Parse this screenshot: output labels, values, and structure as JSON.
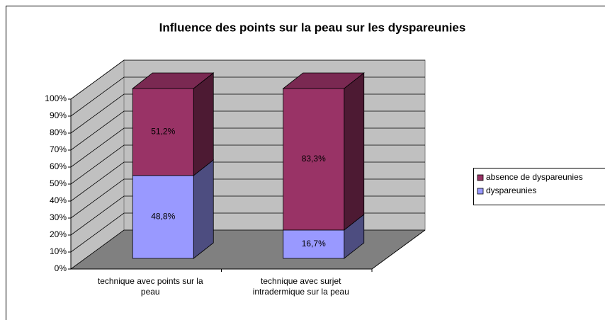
{
  "chart_data": {
    "type": "bar3d_stacked",
    "title": "Influence des points sur la peau sur les dyspareunies",
    "categories": [
      "technique avec points sur la peau",
      "technique avec surjet intradermique sur la peau"
    ],
    "series": [
      {
        "name": "dyspareunies",
        "color": "#9999ff",
        "values": [
          48.8,
          16.7
        ],
        "value_labels": [
          "48,8%",
          "16,7%"
        ]
      },
      {
        "name": "absence de dyspareunies",
        "color": "#993366",
        "values": [
          51.2,
          83.3
        ],
        "value_labels": [
          "51,2%",
          "83,3%"
        ]
      }
    ],
    "ylim": [
      0,
      100
    ],
    "yticks": [
      {
        "value": 0,
        "label": "0%"
      },
      {
        "value": 10,
        "label": "10%"
      },
      {
        "value": 20,
        "label": "20%"
      },
      {
        "value": 30,
        "label": "30%"
      },
      {
        "value": 40,
        "label": "40%"
      },
      {
        "value": 50,
        "label": "50%"
      },
      {
        "value": 60,
        "label": "60%"
      },
      {
        "value": 70,
        "label": "70%"
      },
      {
        "value": 80,
        "label": "80%"
      },
      {
        "value": 90,
        "label": "90%"
      },
      {
        "value": 100,
        "label": "100%"
      }
    ],
    "grid": true,
    "legend": "right"
  }
}
